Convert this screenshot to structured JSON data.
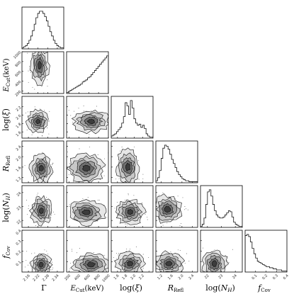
{
  "chart_data": {
    "type": "corner",
    "parameters": [
      {
        "key": "gamma",
        "label": "Γ",
        "ticks": [
          "2.16",
          "2.22",
          "2.28",
          "2.34"
        ],
        "range": [
          2.12,
          2.38
        ]
      },
      {
        "key": "ecut",
        "label": "E_Cut (keV)",
        "ticks": [
          "200",
          "400",
          "600",
          "800",
          "1000"
        ],
        "range": [
          150,
          1000
        ]
      },
      {
        "key": "logxi",
        "label": "log(ξ)",
        "ticks": [
          "1.6",
          "1.8",
          "2.0",
          "2.2"
        ],
        "range": [
          1.45,
          2.45
        ]
      },
      {
        "key": "rrefl",
        "label": "R_Refl",
        "ticks": [
          "1.2",
          "1.6",
          "2.0",
          "2.4"
        ],
        "range": [
          1.0,
          2.6
        ]
      },
      {
        "key": "lognh",
        "label": "log(N_H)",
        "ticks": [
          "22",
          "23",
          "24"
        ],
        "range": [
          21.5,
          24.5
        ]
      },
      {
        "key": "fcov",
        "label": "f_Cov",
        "ticks": [
          "0.1",
          "0.2",
          "0.3",
          "0.4"
        ],
        "range": [
          0.0,
          0.4
        ]
      }
    ],
    "tick_labels": {
      "gamma": [
        "2.16",
        "2.22",
        "2.28",
        "2.34"
      ],
      "ecut": [
        "200",
        "400",
        "600",
        "800",
        "1000"
      ],
      "logxi": [
        "1.6",
        "1.8",
        "2.0",
        "2.2"
      ],
      "rrefl": [
        "1.2",
        "1.6",
        "2.0",
        "2.4"
      ],
      "lognh": [
        "22",
        "23",
        "24"
      ],
      "fcov": [
        "0.1",
        "0.2",
        "0.3",
        "0.4"
      ]
    },
    "histograms": {
      "gamma": [
        1,
        2,
        3,
        5,
        8,
        12,
        17,
        23,
        29,
        33,
        35,
        35,
        33,
        30,
        26,
        21,
        16,
        12,
        8,
        5,
        3,
        2,
        1,
        1
      ],
      "ecut": [
        1,
        2,
        3,
        4,
        5,
        6,
        7,
        8,
        9,
        11,
        12,
        13,
        15,
        16,
        18,
        20,
        22,
        24,
        26,
        28,
        30,
        32,
        34,
        36
      ],
      "logxi": [
        2,
        3,
        4,
        6,
        8,
        10,
        14,
        20,
        33,
        30,
        22,
        35,
        28,
        18,
        14,
        12,
        13,
        10,
        12,
        9,
        4,
        2,
        1,
        1
      ],
      "rrefl": [
        2,
        5,
        12,
        24,
        34,
        37,
        36,
        33,
        28,
        23,
        19,
        15,
        11,
        8,
        6,
        4,
        3,
        2,
        2,
        1,
        1,
        1,
        1,
        1
      ],
      "lognh": [
        1,
        3,
        9,
        22,
        34,
        36,
        30,
        22,
        16,
        12,
        10,
        9,
        9,
        10,
        12,
        14,
        16,
        15,
        10,
        5,
        3,
        2,
        1,
        1
      ],
      "fcov": [
        34,
        35,
        33,
        28,
        22,
        17,
        13,
        10,
        9,
        8,
        7,
        6,
        5,
        5,
        4,
        4,
        3,
        3,
        2,
        2,
        2,
        1,
        1,
        1
      ]
    },
    "joint_peaks": {
      "ecut_vs_gamma": [
        [
          2.23,
          720,
          0.025,
          170
        ]
      ],
      "logxi_vs_gamma": [
        [
          2.22,
          1.85,
          0.03,
          0.12
        ]
      ],
      "logxi_vs_ecut": [
        [
          650,
          1.85,
          160,
          0.12
        ]
      ],
      "rrefl_vs_gamma": [
        [
          2.24,
          1.55,
          0.03,
          0.25
        ]
      ],
      "rrefl_vs_ecut": [
        [
          550,
          1.55,
          170,
          0.25
        ]
      ],
      "rrefl_vs_logxi": [
        [
          1.85,
          1.6,
          0.12,
          0.3
        ]
      ],
      "lognh_vs_gamma": [
        [
          2.24,
          22.7,
          0.03,
          0.45
        ]
      ],
      "lognh_vs_ecut": [
        [
          550,
          22.6,
          170,
          0.4
        ]
      ],
      "lognh_vs_logxi": [
        [
          1.9,
          22.6,
          0.15,
          0.4
        ]
      ],
      "lognh_vs_rrefl": [
        [
          1.45,
          22.8,
          0.25,
          0.45
        ]
      ],
      "fcov_vs_gamma": [
        [
          2.24,
          0.07,
          0.03,
          0.05
        ]
      ],
      "fcov_vs_ecut": [
        [
          650,
          0.07,
          170,
          0.05
        ]
      ],
      "fcov_vs_logxi": [
        [
          1.9,
          0.08,
          0.15,
          0.05
        ]
      ],
      "fcov_vs_rrefl": [
        [
          1.5,
          0.08,
          0.25,
          0.05
        ]
      ],
      "fcov_vs_lognh": [
        [
          22.5,
          0.08,
          0.4,
          0.06
        ]
      ]
    },
    "grid": false,
    "legend": "none"
  }
}
